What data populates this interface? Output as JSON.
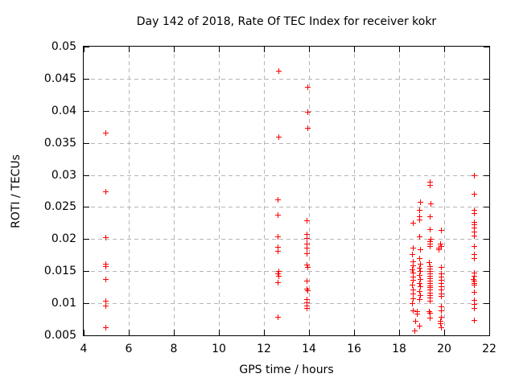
{
  "chart_data": {
    "type": "scatter",
    "title": "Day 142 of 2018, Rate Of TEC Index for receiver kokr",
    "xlabel": "GPS time / hours",
    "ylabel": "ROTI / TECUs",
    "xlim": [
      4,
      22
    ],
    "ylim": [
      0.005,
      0.05
    ],
    "grid": true,
    "legend": "none",
    "xticks": [
      4,
      6,
      8,
      10,
      12,
      14,
      16,
      18,
      20,
      22
    ],
    "xtick_labels": [
      "4",
      "6",
      "8",
      "10",
      "12",
      "14",
      "16",
      "18",
      "20",
      "22"
    ],
    "yticks": [
      0.005,
      0.01,
      0.015,
      0.02,
      0.025,
      0.03,
      0.035,
      0.04,
      0.045,
      0.05
    ],
    "ytick_labels": [
      "0.005",
      "0.01",
      "0.015",
      "0.02",
      "0.025",
      "0.03",
      "0.035",
      "0.04",
      "0.045",
      "0.05"
    ],
    "colors": {
      "marker": "#ff0000",
      "grid": "#b5b5b5",
      "axis": "#000000",
      "background": "#ffffff"
    },
    "marker_symbol": "plus",
    "series": [
      {
        "name": "ROTI",
        "points": [
          [
            4.96,
            0.0366
          ],
          [
            4.96,
            0.0275
          ],
          [
            4.96,
            0.0203
          ],
          [
            4.95,
            0.0161
          ],
          [
            4.97,
            0.0158
          ],
          [
            4.96,
            0.0138
          ],
          [
            4.96,
            0.0104
          ],
          [
            4.96,
            0.0096
          ],
          [
            4.96,
            0.0063
          ],
          [
            12.64,
            0.0463
          ],
          [
            12.64,
            0.036
          ],
          [
            12.61,
            0.0262
          ],
          [
            12.61,
            0.0238
          ],
          [
            12.61,
            0.0204
          ],
          [
            12.62,
            0.0188
          ],
          [
            12.62,
            0.0182
          ],
          [
            12.63,
            0.015
          ],
          [
            12.61,
            0.0147
          ],
          [
            12.63,
            0.0143
          ],
          [
            12.62,
            0.0133
          ],
          [
            12.62,
            0.0079
          ],
          [
            13.92,
            0.0437
          ],
          [
            13.92,
            0.0399
          ],
          [
            13.92,
            0.0373
          ],
          [
            13.9,
            0.0229
          ],
          [
            13.91,
            0.0208
          ],
          [
            13.91,
            0.0202
          ],
          [
            13.88,
            0.0193
          ],
          [
            13.91,
            0.0187
          ],
          [
            13.9,
            0.0178
          ],
          [
            13.9,
            0.016
          ],
          [
            13.92,
            0.0156
          ],
          [
            13.9,
            0.0135
          ],
          [
            13.9,
            0.0123
          ],
          [
            13.92,
            0.012
          ],
          [
            13.9,
            0.0106
          ],
          [
            13.91,
            0.0101
          ],
          [
            13.88,
            0.0097
          ],
          [
            13.91,
            0.0093
          ],
          [
            18.6,
            0.0226
          ],
          [
            18.62,
            0.0187
          ],
          [
            18.58,
            0.0176
          ],
          [
            18.62,
            0.0165
          ],
          [
            18.6,
            0.0159
          ],
          [
            18.57,
            0.0153
          ],
          [
            18.61,
            0.0148
          ],
          [
            18.6,
            0.0142
          ],
          [
            18.62,
            0.0136
          ],
          [
            18.58,
            0.0129
          ],
          [
            18.6,
            0.0122
          ],
          [
            18.62,
            0.0115
          ],
          [
            18.6,
            0.0108
          ],
          [
            18.58,
            0.01
          ],
          [
            18.61,
            0.0089
          ],
          [
            18.79,
            0.0087
          ],
          [
            18.79,
            0.0084
          ],
          [
            18.71,
            0.0072
          ],
          [
            18.68,
            0.0058
          ],
          [
            18.93,
            0.0258
          ],
          [
            18.89,
            0.0245
          ],
          [
            18.91,
            0.0235
          ],
          [
            18.89,
            0.0231
          ],
          [
            18.91,
            0.0204
          ],
          [
            18.93,
            0.0184
          ],
          [
            18.91,
            0.017
          ],
          [
            18.93,
            0.0162
          ],
          [
            18.9,
            0.0155
          ],
          [
            18.93,
            0.015
          ],
          [
            18.91,
            0.0144
          ],
          [
            18.93,
            0.0138
          ],
          [
            18.9,
            0.0132
          ],
          [
            18.93,
            0.0126
          ],
          [
            18.91,
            0.0119
          ],
          [
            18.93,
            0.0113
          ],
          [
            18.9,
            0.0106
          ],
          [
            18.89,
            0.0065
          ],
          [
            19.36,
            0.029
          ],
          [
            19.36,
            0.0285
          ],
          [
            19.39,
            0.0256
          ],
          [
            19.36,
            0.0235
          ],
          [
            19.36,
            0.0216
          ],
          [
            19.39,
            0.0201
          ],
          [
            19.35,
            0.0197
          ],
          [
            19.37,
            0.0193
          ],
          [
            19.35,
            0.0189
          ],
          [
            19.33,
            0.0164
          ],
          [
            19.37,
            0.0158
          ],
          [
            19.35,
            0.0154
          ],
          [
            19.36,
            0.015
          ],
          [
            19.35,
            0.0146
          ],
          [
            19.37,
            0.0143
          ],
          [
            19.35,
            0.0139
          ],
          [
            19.36,
            0.0135
          ],
          [
            19.35,
            0.0132
          ],
          [
            19.37,
            0.0128
          ],
          [
            19.35,
            0.0125
          ],
          [
            19.36,
            0.0121
          ],
          [
            19.35,
            0.0117
          ],
          [
            19.37,
            0.0113
          ],
          [
            19.35,
            0.0109
          ],
          [
            19.36,
            0.0104
          ],
          [
            19.33,
            0.0088
          ],
          [
            19.35,
            0.0085
          ],
          [
            19.36,
            0.0078
          ],
          [
            19.86,
            0.0214
          ],
          [
            19.83,
            0.0193
          ],
          [
            19.85,
            0.0189
          ],
          [
            19.75,
            0.0187
          ],
          [
            19.75,
            0.0184
          ],
          [
            19.86,
            0.0156
          ],
          [
            19.86,
            0.0146
          ],
          [
            19.84,
            0.0141
          ],
          [
            19.86,
            0.0136
          ],
          [
            19.85,
            0.0131
          ],
          [
            19.86,
            0.0126
          ],
          [
            19.84,
            0.0121
          ],
          [
            19.86,
            0.0115
          ],
          [
            19.85,
            0.0111
          ],
          [
            19.84,
            0.0095
          ],
          [
            19.86,
            0.0089
          ],
          [
            19.85,
            0.0079
          ],
          [
            19.82,
            0.0072
          ],
          [
            19.82,
            0.0069
          ],
          [
            19.84,
            0.0062
          ],
          [
            21.32,
            0.03
          ],
          [
            21.32,
            0.0271
          ],
          [
            21.31,
            0.0246
          ],
          [
            21.32,
            0.024
          ],
          [
            21.31,
            0.0227
          ],
          [
            21.33,
            0.0223
          ],
          [
            21.31,
            0.0218
          ],
          [
            21.32,
            0.0212
          ],
          [
            21.32,
            0.0206
          ],
          [
            21.32,
            0.0189
          ],
          [
            21.31,
            0.0176
          ],
          [
            21.32,
            0.017
          ],
          [
            21.31,
            0.0148
          ],
          [
            21.32,
            0.0143
          ],
          [
            21.3,
            0.0138
          ],
          [
            21.33,
            0.0135
          ],
          [
            21.31,
            0.0132
          ],
          [
            21.32,
            0.0129
          ],
          [
            21.32,
            0.0118
          ],
          [
            21.32,
            0.0105
          ],
          [
            21.31,
            0.0099
          ],
          [
            21.32,
            0.0092
          ],
          [
            21.32,
            0.0074
          ]
        ]
      }
    ]
  }
}
